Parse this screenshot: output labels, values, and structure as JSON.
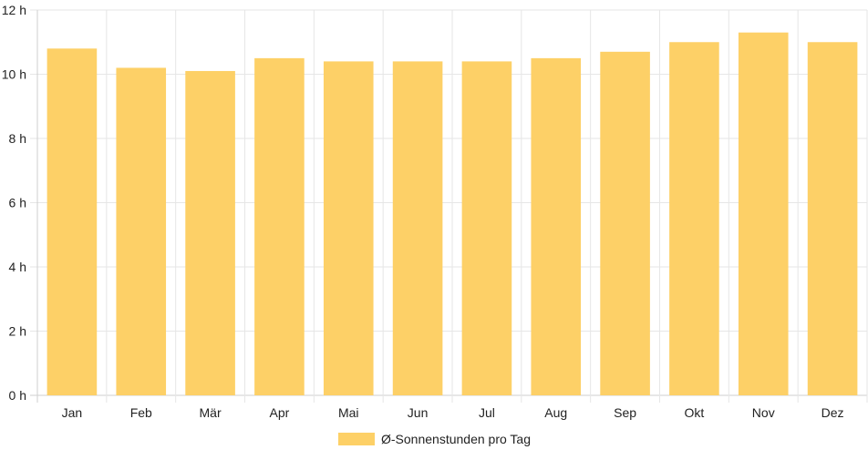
{
  "chart_data": {
    "type": "bar",
    "categories": [
      "Jan",
      "Feb",
      "Mär",
      "Apr",
      "Mai",
      "Jun",
      "Jul",
      "Aug",
      "Sep",
      "Okt",
      "Nov",
      "Dez"
    ],
    "series": [
      {
        "name": "Ø-Sonnenstunden pro Tag",
        "values": [
          10.8,
          10.2,
          10.1,
          10.5,
          10.4,
          10.4,
          10.4,
          10.5,
          10.7,
          11.0,
          11.3,
          11.0
        ],
        "color": "#fdd067"
      }
    ],
    "y_ticks": [
      "0 h",
      "2 h",
      "4 h",
      "6 h",
      "8 h",
      "10 h",
      "12 h"
    ],
    "ylim": [
      0,
      12
    ],
    "grid": true,
    "legend_position": "bottom",
    "colors": {
      "bar": "#fdd067",
      "grid": "#e6e6e6",
      "axis": "#cfcfcf"
    }
  }
}
